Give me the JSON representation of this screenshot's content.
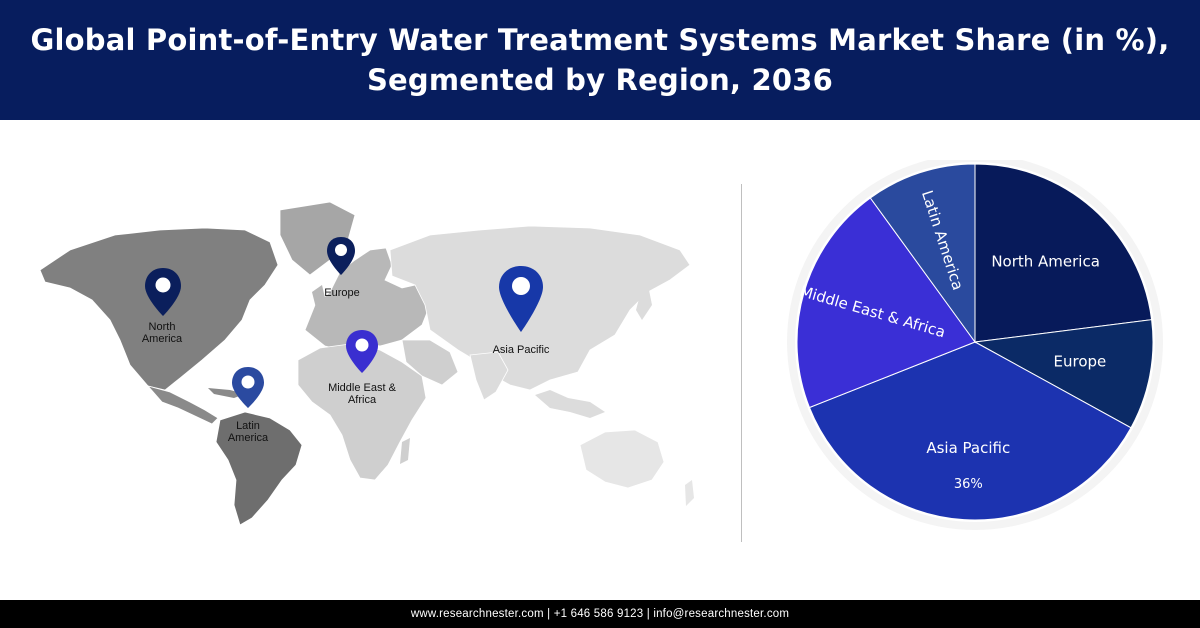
{
  "header": {
    "title_line1": "Global Point-of-Entry Water Treatment Systems Market Share (in %),",
    "title_line2": "Segmented by Region, 2036"
  },
  "map": {
    "labels": {
      "north_america": [
        "North",
        "America"
      ],
      "europe": "Europe",
      "asia_pacific": "Asia Pacific",
      "middle_east_africa": [
        "Middle East &",
        "Africa"
      ],
      "latin_america": [
        "Latin",
        "America"
      ]
    },
    "pin_colors": {
      "north_america": "#0b1f5c",
      "europe": "#0b1f5c",
      "asia_pacific": "#1738a8",
      "middle_east_africa": "#3a2fd0",
      "latin_america": "#2b4aa0"
    }
  },
  "chart_data": {
    "type": "pie",
    "slices": [
      {
        "label": "North America",
        "value": 23,
        "color": "#071a5a"
      },
      {
        "label": "Europe",
        "value": 10,
        "color": "#0b2a66"
      },
      {
        "label": "Asia Pacific",
        "value": 36,
        "color": "#1c33b0"
      },
      {
        "label": "Middle East & Africa",
        "value": 21,
        "color": "#3a2fd6"
      },
      {
        "label": "Latin America",
        "value": 10,
        "color": "#2a4a9e"
      }
    ],
    "data_labels": {
      "Asia Pacific": "36%"
    }
  },
  "footer": {
    "text": "www.researchnester.com  | +1 646 586 9123 | info@researchnester.com"
  }
}
